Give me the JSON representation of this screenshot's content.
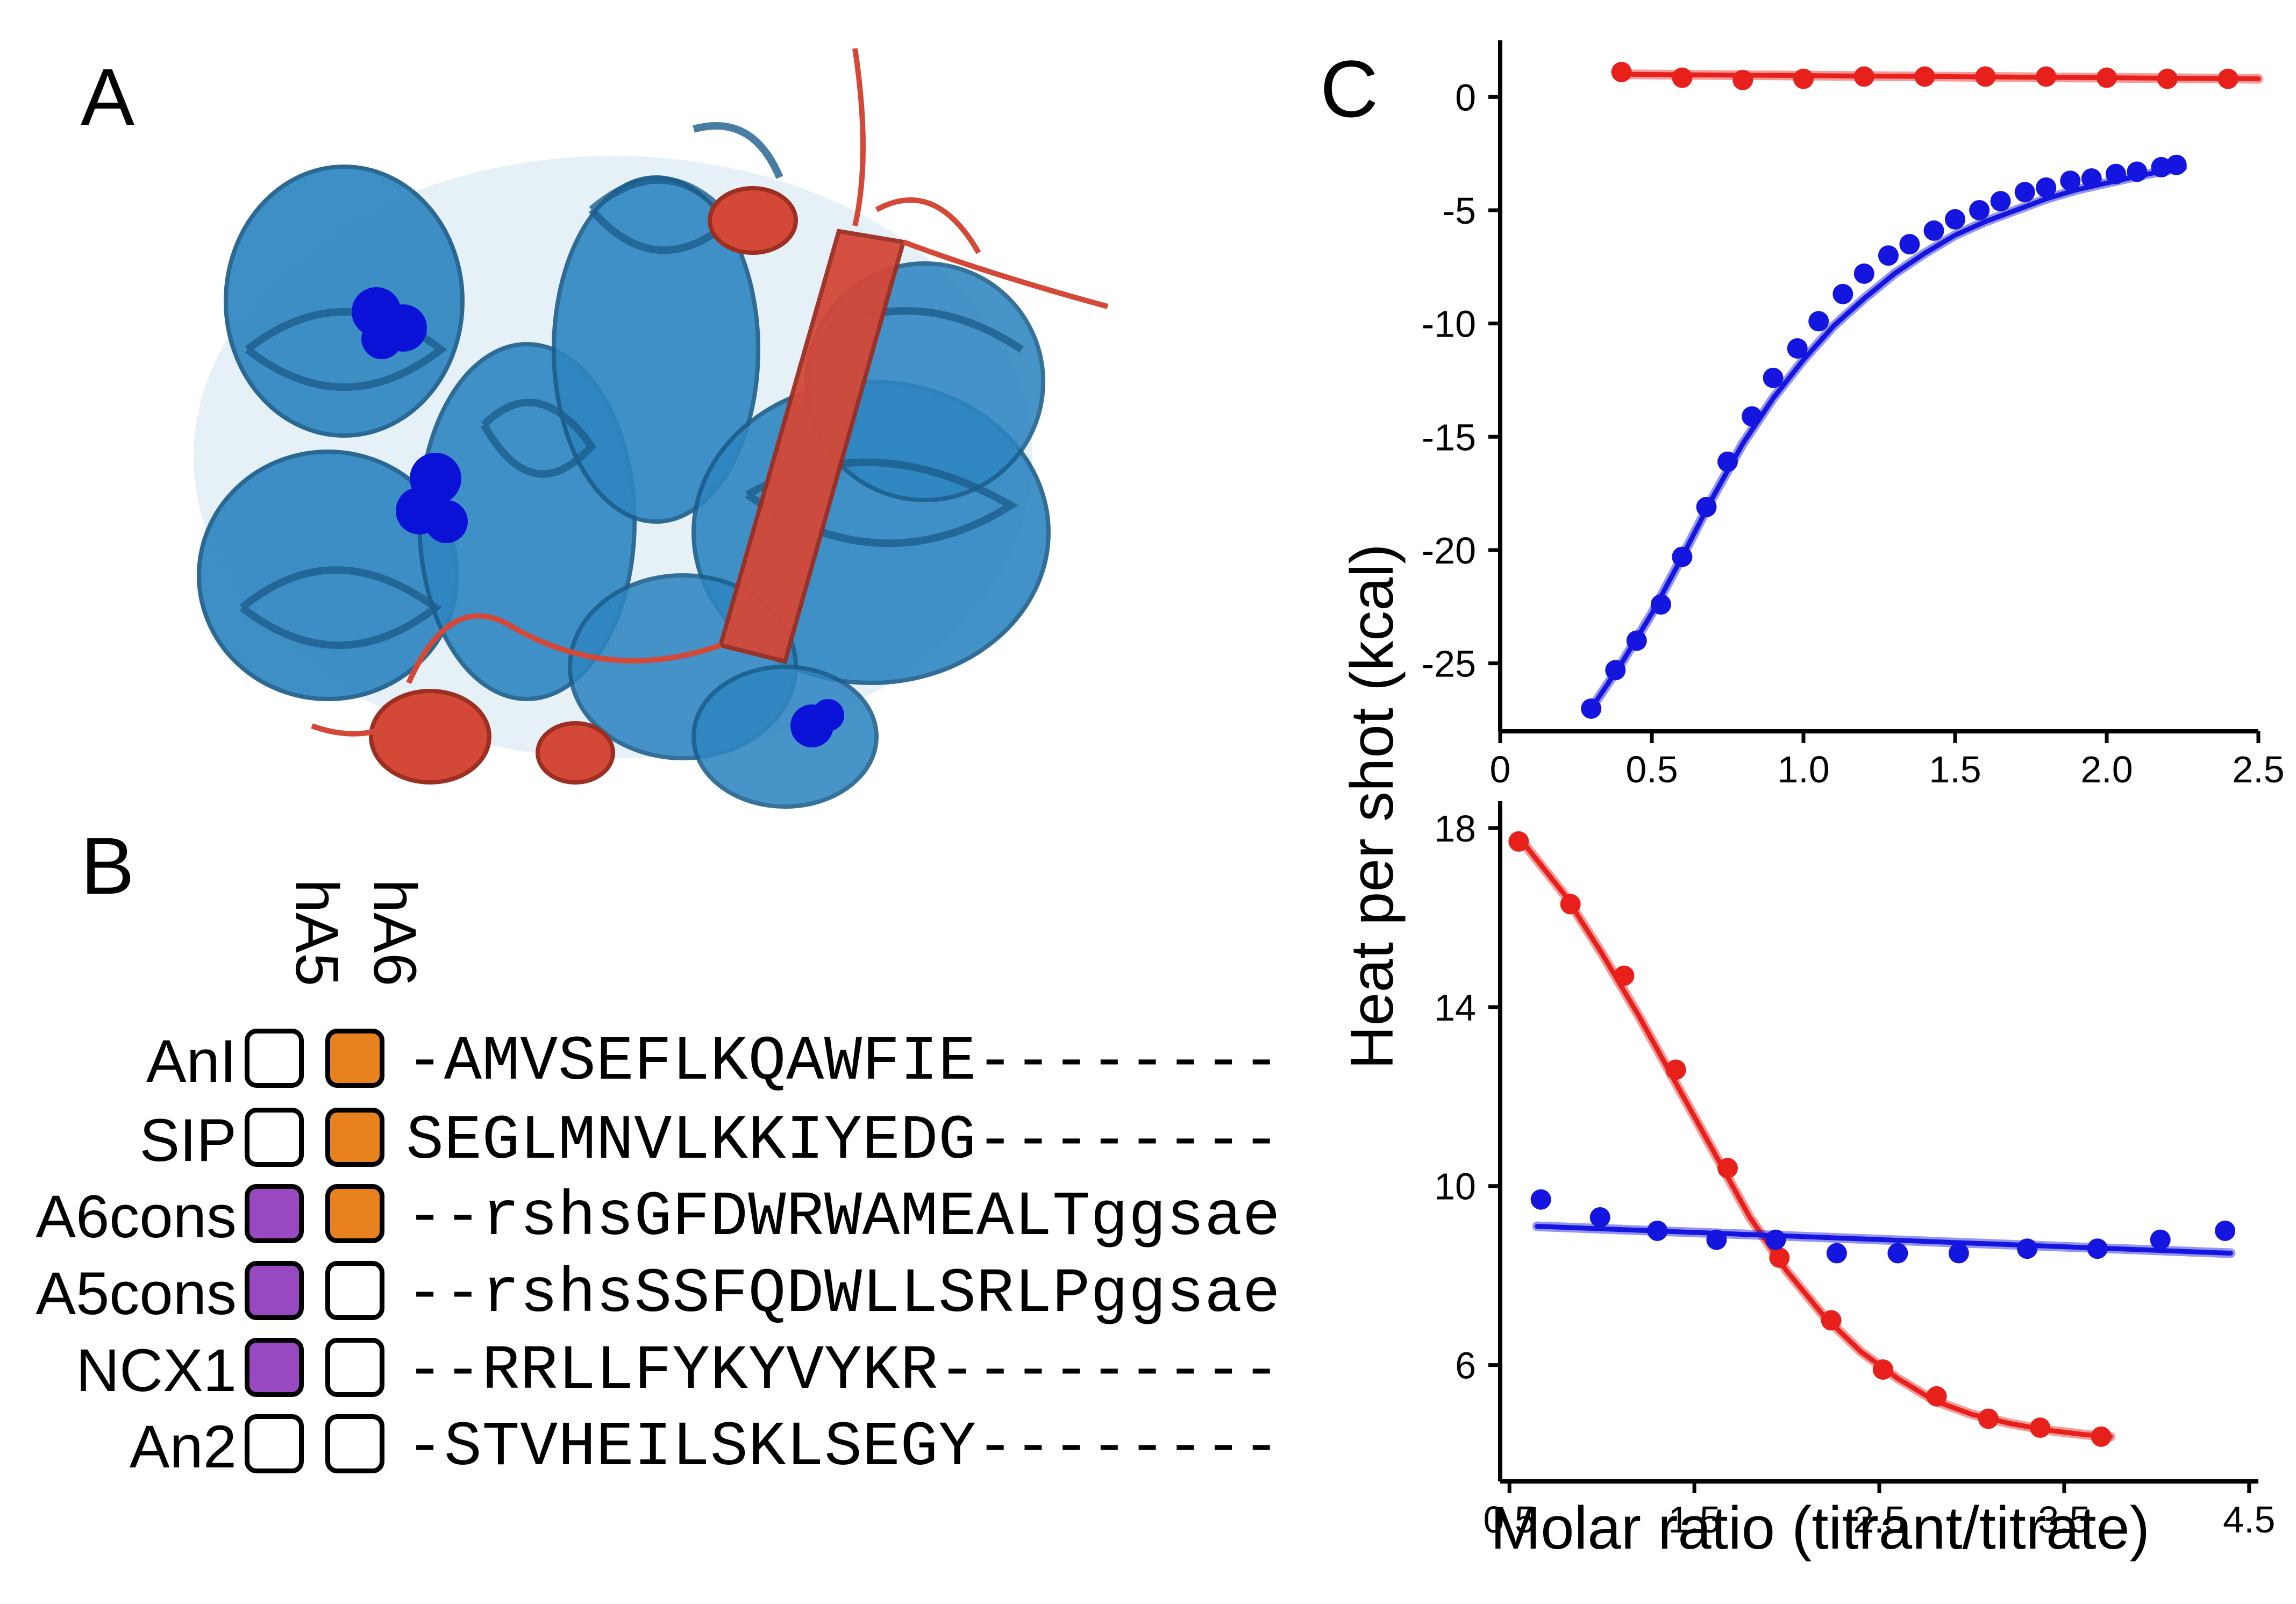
{
  "panels": {
    "a": "A",
    "b": "B",
    "c": "C"
  },
  "colors": {
    "red": "#e8201c",
    "blue": "#1515e0",
    "purple": "#9848c0",
    "orange": "#e8821e",
    "protein_blue": "#2e86c1",
    "peptide_red": "#d44838",
    "sphere_blue": "#0a12d8"
  },
  "alignment": {
    "columns": [
      "hA5",
      "hA6"
    ],
    "rows": [
      {
        "label": "AnI",
        "hA5": "none",
        "hA6": "orange",
        "sequence": "-AMVSEFLKQAWFIE--------"
      },
      {
        "label": "SIP",
        "hA5": "none",
        "hA6": "orange",
        "sequence": "SEGLMNVLKKIYEDG--------"
      },
      {
        "label": "A6cons",
        "hA5": "purple",
        "hA6": "orange",
        "sequence": "--rshsGFDWRWAMEALTggsae"
      },
      {
        "label": "A5cons",
        "hA5": "purple",
        "hA6": "none",
        "sequence": "--rshsSSFQDWLLSRLPggsae"
      },
      {
        "label": "NCX1",
        "hA5": "purple",
        "hA6": "none",
        "sequence": "--RRLLFYKYVYKR---------"
      },
      {
        "label": "An2",
        "hA5": "none",
        "hA6": "none",
        "sequence": "-STVHEILSKLSEGY--------"
      }
    ]
  },
  "chart_data": [
    {
      "type": "scatter",
      "panel": "top",
      "xlim": [
        0,
        2.5
      ],
      "ylim": [
        -28,
        2.5
      ],
      "xticks": [
        "0",
        "0.5",
        "1.0",
        "1.5",
        "2.0",
        "2.5"
      ],
      "xtick_values": [
        0,
        0.5,
        1.0,
        1.5,
        2.0,
        2.5
      ],
      "yticks": [
        "0",
        "-5",
        "-10",
        "-15",
        "-20",
        "-25"
      ],
      "ytick_values": [
        0,
        -5,
        -10,
        -15,
        -20,
        -25
      ],
      "series": [
        {
          "color": "red",
          "x": [
            0.4,
            0.6,
            0.8,
            1.0,
            1.2,
            1.4,
            1.6,
            1.8,
            2.0,
            2.2,
            2.4
          ],
          "y": [
            1.1,
            0.85,
            0.75,
            0.8,
            0.9,
            0.9,
            0.9,
            0.9,
            0.85,
            0.8,
            0.8
          ],
          "fit": {
            "x": [
              0.4,
              2.5
            ],
            "y": [
              1.0,
              0.8
            ]
          }
        },
        {
          "color": "blue",
          "x": [
            0.3,
            0.38,
            0.45,
            0.53,
            0.6,
            0.68,
            0.75,
            0.83,
            0.9,
            0.98,
            1.05,
            1.13,
            1.2,
            1.28,
            1.35,
            1.43,
            1.5,
            1.58,
            1.65,
            1.73,
            1.8,
            1.88,
            1.95,
            2.03,
            2.1,
            2.18,
            2.23
          ],
          "y": [
            -27.0,
            -25.3,
            -24.0,
            -22.4,
            -20.3,
            -18.1,
            -16.1,
            -14.1,
            -12.4,
            -11.1,
            -9.9,
            -8.7,
            -7.8,
            -7.0,
            -6.5,
            -5.9,
            -5.4,
            -5.0,
            -4.6,
            -4.2,
            -4.0,
            -3.7,
            -3.6,
            -3.4,
            -3.3,
            -3.1,
            -3.0
          ],
          "fit_x": [
            0.3,
            0.4,
            0.5,
            0.6,
            0.7,
            0.8,
            0.9,
            1.0,
            1.1,
            1.2,
            1.3,
            1.4,
            1.5,
            1.6,
            1.7,
            1.8,
            1.9,
            2.0,
            2.1,
            2.25
          ],
          "fit_y": [
            -27.0,
            -25.0,
            -22.8,
            -20.3,
            -17.7,
            -15.3,
            -13.3,
            -11.6,
            -10.1,
            -8.9,
            -7.8,
            -6.9,
            -6.1,
            -5.5,
            -5.0,
            -4.5,
            -4.1,
            -3.8,
            -3.5,
            -3.1
          ]
        }
      ]
    },
    {
      "type": "scatter",
      "panel": "bottom",
      "xlabel": "Molar ratio (titrant/titrate)",
      "ylabel": "Heat per shot (kcal)",
      "xlim": [
        0.45,
        4.55
      ],
      "ylim": [
        3.4,
        18.6
      ],
      "xticks": [
        "0.5",
        "1.5",
        "2.5",
        "3.5",
        "4.5"
      ],
      "xtick_values": [
        0.5,
        1.5,
        2.5,
        3.5,
        4.5
      ],
      "yticks": [
        "18",
        "14",
        "10",
        "6"
      ],
      "ytick_values": [
        18,
        14,
        10,
        6
      ],
      "series": [
        {
          "color": "red",
          "x": [
            0.55,
            0.83,
            1.12,
            1.4,
            1.68,
            1.96,
            2.24,
            2.52,
            2.81,
            3.09,
            3.37,
            3.7
          ],
          "y": [
            17.7,
            16.3,
            14.7,
            12.6,
            10.4,
            8.4,
            7.0,
            5.9,
            5.3,
            4.8,
            4.6,
            4.4
          ],
          "fit_x": [
            0.55,
            0.8,
            1.0,
            1.2,
            1.4,
            1.6,
            1.8,
            2.0,
            2.2,
            2.4,
            2.6,
            2.8,
            3.0,
            3.2,
            3.4,
            3.6,
            3.75
          ],
          "fit_y": [
            17.8,
            16.5,
            15.2,
            13.8,
            12.3,
            10.8,
            9.3,
            8.1,
            7.1,
            6.3,
            5.7,
            5.2,
            4.9,
            4.7,
            4.55,
            4.45,
            4.4
          ]
        },
        {
          "color": "blue",
          "x": [
            0.67,
            0.99,
            1.3,
            1.62,
            1.94,
            2.27,
            2.6,
            2.93,
            3.3,
            3.68,
            4.02,
            4.37
          ],
          "y": [
            9.7,
            9.3,
            9.0,
            8.8,
            8.8,
            8.5,
            8.5,
            8.5,
            8.6,
            8.6,
            8.8,
            9.0
          ],
          "fit": {
            "x": [
              0.65,
              4.4
            ],
            "y": [
              9.1,
              8.5
            ]
          }
        }
      ]
    }
  ]
}
